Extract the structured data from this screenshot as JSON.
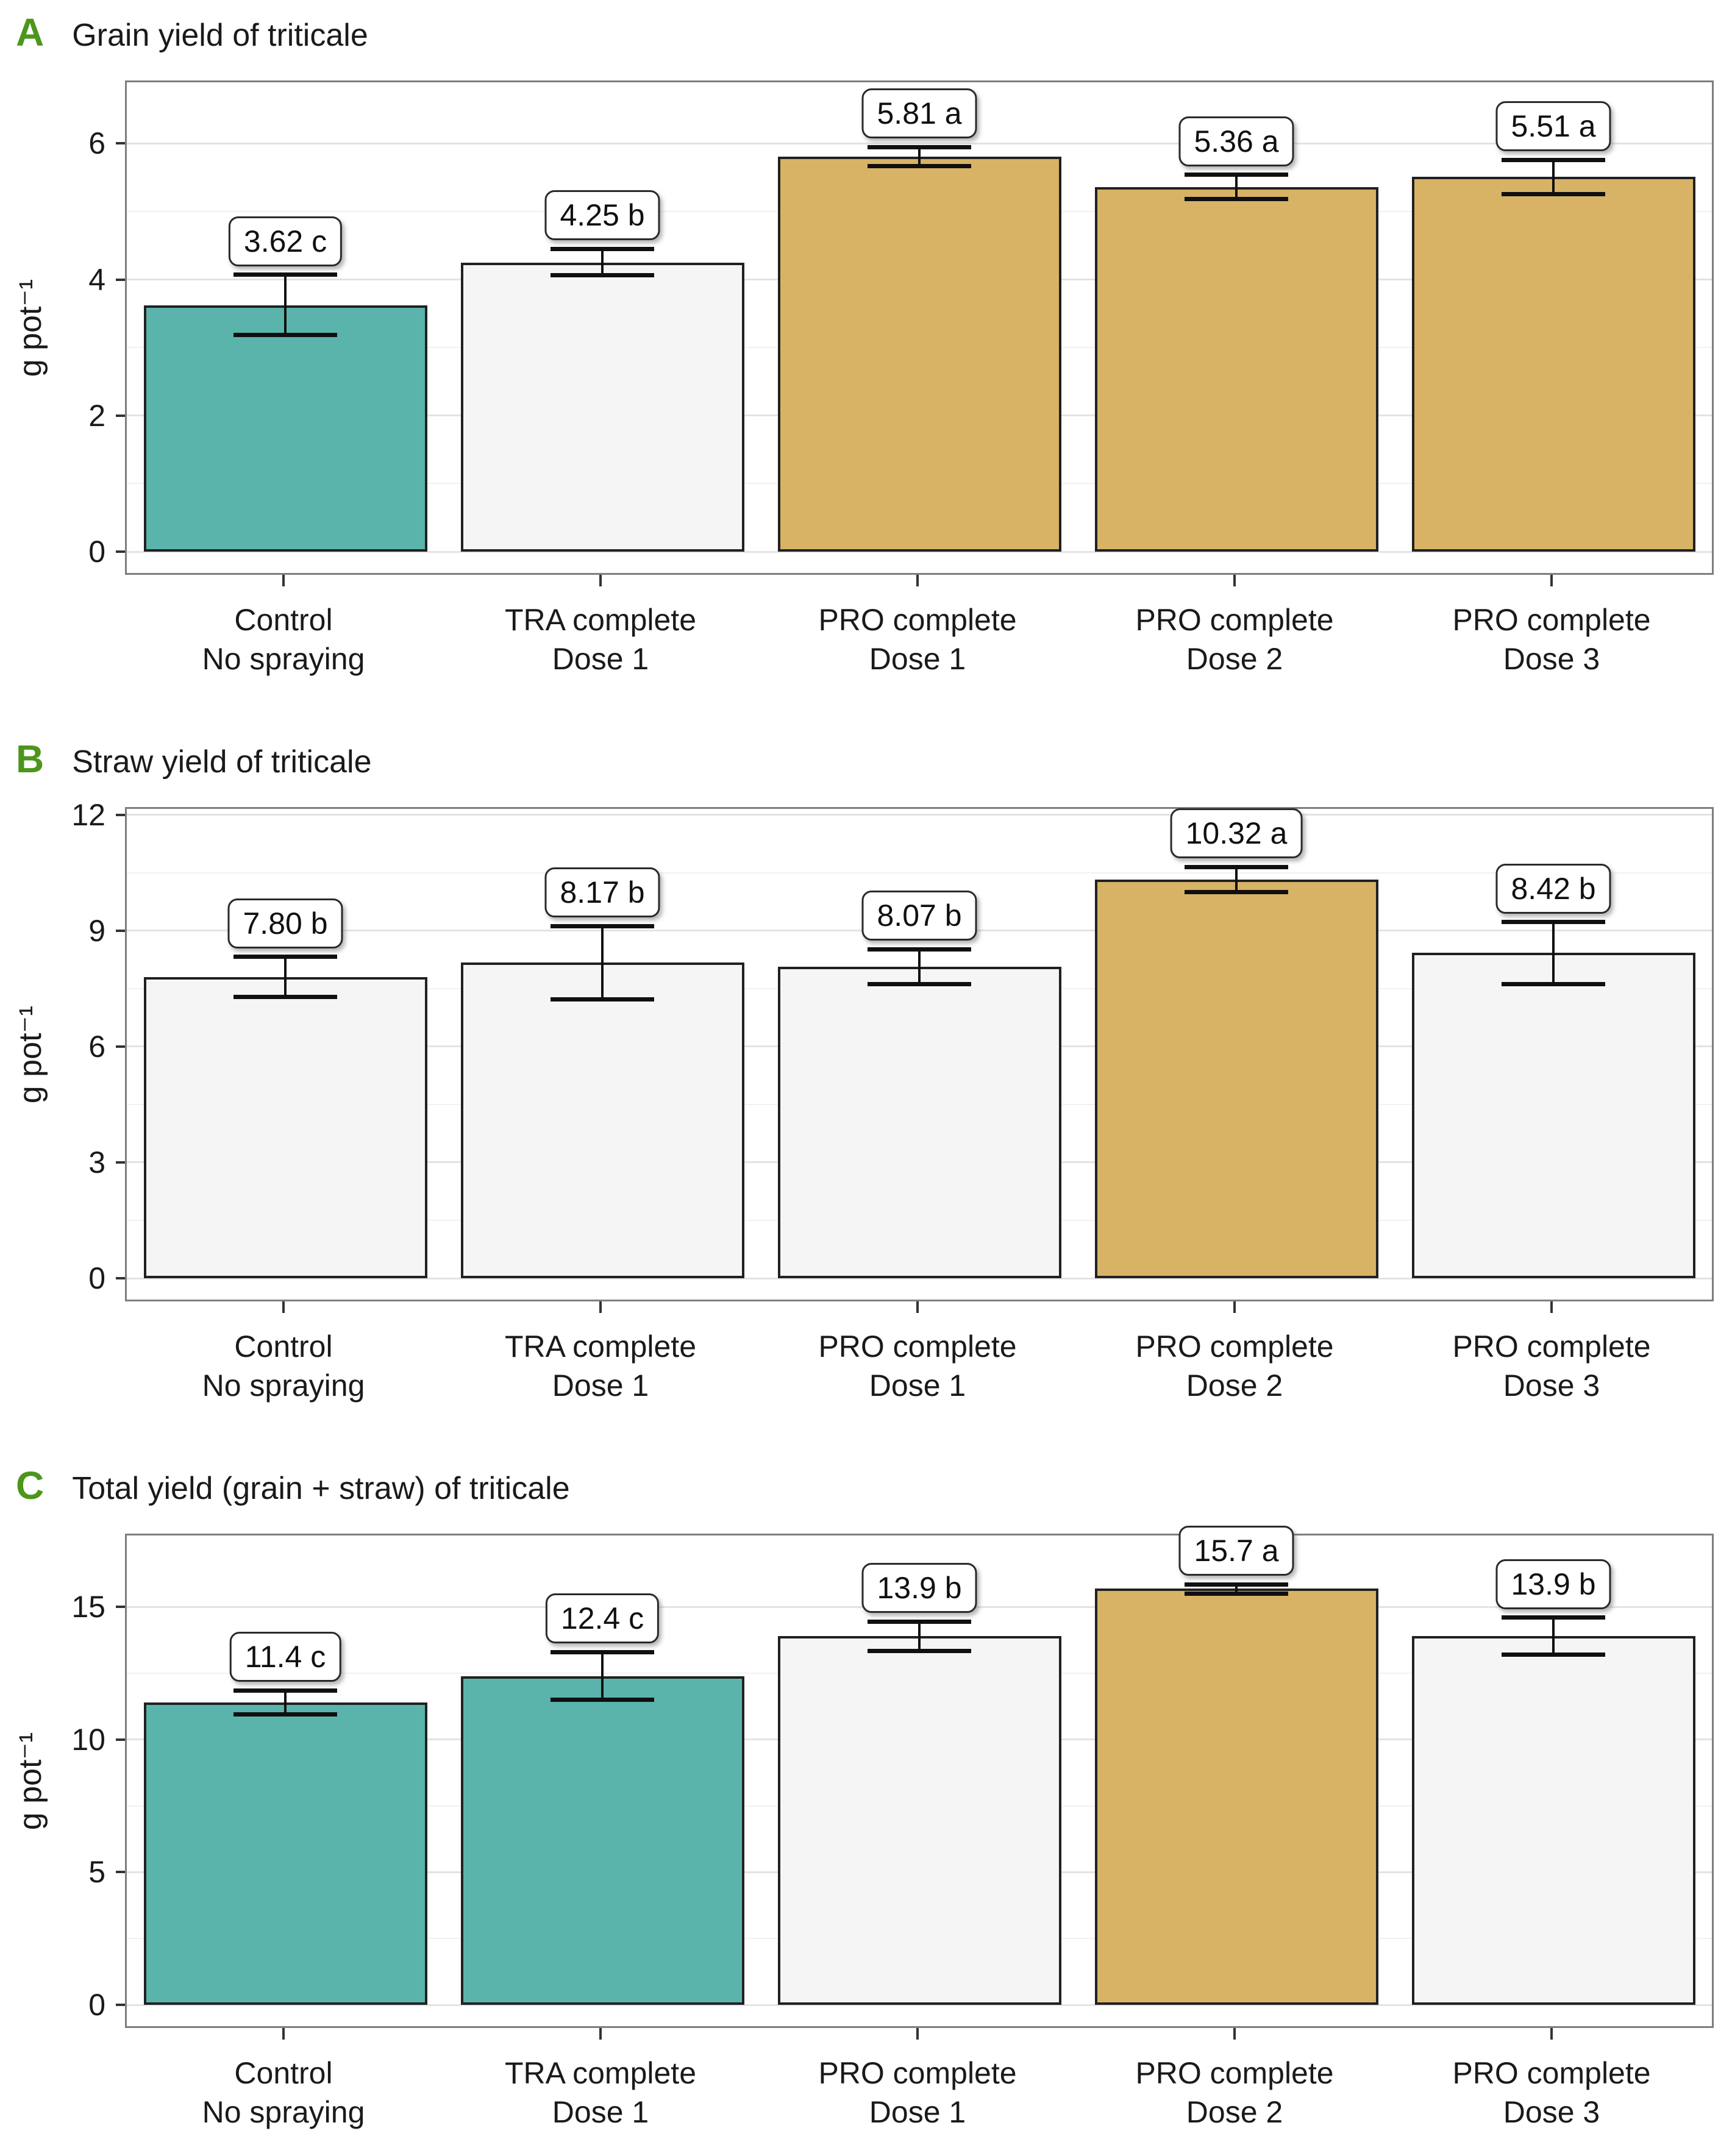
{
  "palette": {
    "teal": "#5AB4AC",
    "gray": "#F5F5F5",
    "tan": "#D8B365",
    "letter_green": "#4C961C",
    "panel_border": "#7E7E7E",
    "grid_major": "#E3E3E3",
    "grid_minor": "#F1F1F1",
    "ink": "#1A1A1A"
  },
  "chart_data": [
    {
      "type": "bar",
      "letter": "A",
      "title": "Grain yield of triticale",
      "ylabel": "g pot⁻¹",
      "categories": [
        [
          "Control",
          "No spraying"
        ],
        [
          "TRA complete",
          "Dose 1"
        ],
        [
          "PRO complete",
          "Dose 1"
        ],
        [
          "PRO complete",
          "Dose 2"
        ],
        [
          "PRO complete",
          "Dose 3"
        ]
      ],
      "values": [
        3.62,
        4.25,
        5.81,
        5.36,
        5.51
      ],
      "bar_labels": [
        "3.62 c",
        "4.25 b",
        "5.81 a",
        "5.36 a",
        "5.51 a"
      ],
      "sig_letters": [
        "c",
        "b",
        "a",
        "a",
        "a"
      ],
      "error_high": [
        4.07,
        4.45,
        5.95,
        5.54,
        5.76
      ],
      "error_low": [
        3.19,
        4.06,
        5.67,
        5.18,
        5.26
      ],
      "bar_colors": [
        "teal",
        "gray",
        "tan",
        "tan",
        "tan"
      ],
      "ylim": [
        0,
        6.9
      ],
      "yticks": [
        0,
        2,
        4,
        6
      ],
      "minor_ticks": [
        1,
        3,
        5
      ],
      "grid": true,
      "legend": false
    },
    {
      "type": "bar",
      "letter": "B",
      "title": "Straw yield of triticale",
      "ylabel": "g pot⁻¹",
      "categories": [
        [
          "Control",
          "No spraying"
        ],
        [
          "TRA complete",
          "Dose 1"
        ],
        [
          "PRO complete",
          "Dose 1"
        ],
        [
          "PRO complete",
          "Dose 2"
        ],
        [
          "PRO complete",
          "Dose 3"
        ]
      ],
      "values": [
        7.8,
        8.17,
        8.07,
        10.32,
        8.42
      ],
      "bar_labels": [
        "7.80 b",
        "8.17 b",
        "8.07 b",
        "10.32 a",
        "8.42 b"
      ],
      "sig_letters": [
        "b",
        "b",
        "b",
        "a",
        "b"
      ],
      "error_high": [
        8.32,
        9.12,
        8.52,
        10.65,
        9.22
      ],
      "error_low": [
        7.28,
        7.22,
        7.62,
        9.99,
        7.62
      ],
      "bar_colors": [
        "gray",
        "gray",
        "gray",
        "tan",
        "gray"
      ],
      "ylim": [
        0,
        12.15
      ],
      "yticks": [
        0,
        3,
        6,
        9,
        12
      ],
      "minor_ticks": [
        1.5,
        4.5,
        7.5,
        10.5
      ],
      "grid": true,
      "legend": false
    },
    {
      "type": "bar",
      "letter": "C",
      "title": "Total yield (grain + straw) of triticale",
      "ylabel": "g pot⁻¹",
      "categories": [
        [
          "Control",
          "No spraying"
        ],
        [
          "TRA complete",
          "Dose 1"
        ],
        [
          "PRO complete",
          "Dose 1"
        ],
        [
          "PRO complete",
          "Dose 2"
        ],
        [
          "PRO complete",
          "Dose 3"
        ]
      ],
      "values": [
        11.4,
        12.4,
        13.9,
        15.7,
        13.9
      ],
      "bar_labels": [
        "11.4 c",
        "12.4 c",
        "13.9 b",
        "15.7 a",
        "13.9 b"
      ],
      "sig_letters": [
        "c",
        "c",
        "b",
        "a",
        "b"
      ],
      "error_high": [
        11.85,
        13.3,
        14.45,
        15.85,
        14.6
      ],
      "error_low": [
        10.95,
        11.5,
        13.35,
        15.5,
        13.2
      ],
      "bar_colors": [
        "teal",
        "teal",
        "gray",
        "tan",
        "gray"
      ],
      "ylim": [
        0,
        17.7
      ],
      "yticks": [
        0,
        5,
        10,
        15
      ],
      "minor_ticks": [
        2.5,
        7.5,
        12.5
      ],
      "grid": true,
      "legend": false
    }
  ]
}
